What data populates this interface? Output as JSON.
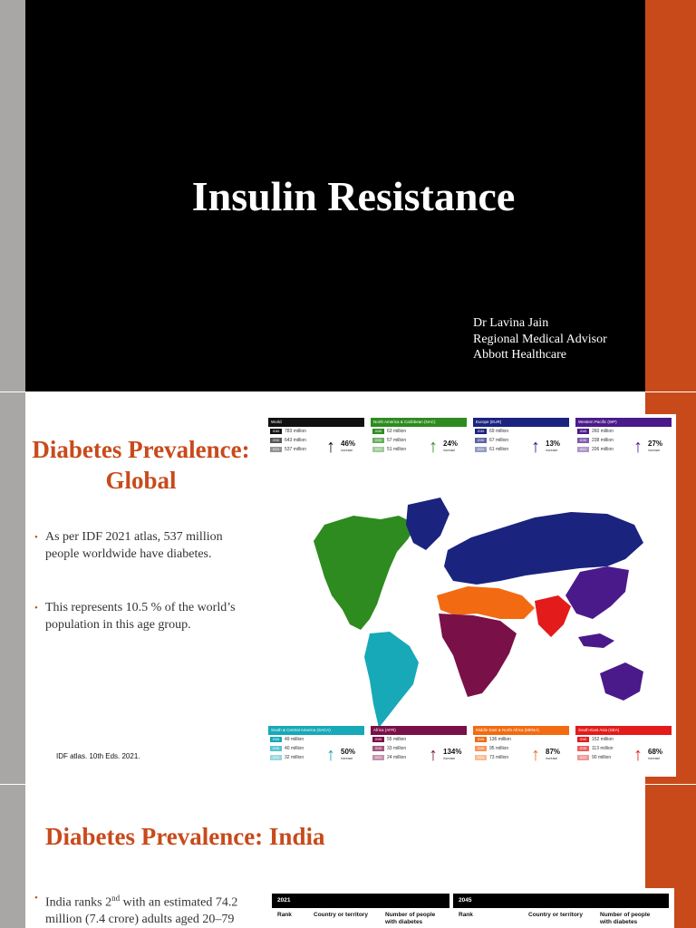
{
  "slide1": {
    "title": "Insulin Resistance",
    "presenter": [
      "Dr Lavina Jain",
      "Regional Medical Advisor",
      "Abbott Healthcare"
    ]
  },
  "slide2": {
    "title_line1": "Diabetes Prevalence:",
    "title_line2": "Global",
    "bullets": [
      "As per IDF 2021 atlas, 537 million people worldwide have diabetes.",
      "This represents 10.5 % of the world’s population in this age group."
    ],
    "source": "IDF atlas. 10th Eds. 2021.",
    "regions_top": [
      {
        "name": "World",
        "color": "#111111",
        "rows": [
          [
            "2045",
            "783 million"
          ],
          [
            "2030",
            "643 million"
          ],
          [
            "2021",
            "537 million"
          ]
        ],
        "increase": "46%",
        "increase_label": "increase"
      },
      {
        "name": "North America & Caribbean (NAC)",
        "color": "#2e8b1f",
        "rows": [
          [
            "2045",
            "63 million"
          ],
          [
            "2030",
            "57 million"
          ],
          [
            "2021",
            "51 million"
          ]
        ],
        "increase": "24%",
        "increase_label": "increase"
      },
      {
        "name": "Europe (EUR)",
        "color": "#1a237e",
        "rows": [
          [
            "2045",
            "69 million"
          ],
          [
            "2030",
            "67 million"
          ],
          [
            "2021",
            "61 million"
          ]
        ],
        "increase": "13%",
        "increase_label": "increase"
      },
      {
        "name": "Western Pacific (WP)",
        "color": "#4b1a8a",
        "rows": [
          [
            "2045",
            "260 million"
          ],
          [
            "2030",
            "238 million"
          ],
          [
            "2021",
            "206 million"
          ]
        ],
        "increase": "27%",
        "increase_label": "increase"
      }
    ],
    "regions_bottom": [
      {
        "name": "South & Central America (SACA)",
        "color": "#17a9b8",
        "rows": [
          [
            "2045",
            "49 million"
          ],
          [
            "2030",
            "40 million"
          ],
          [
            "2021",
            "32 million"
          ]
        ],
        "increase": "50%",
        "increase_label": "increase"
      },
      {
        "name": "Africa (AFR)",
        "color": "#7a1048",
        "rows": [
          [
            "2045",
            "55 million"
          ],
          [
            "2030",
            "33 million"
          ],
          [
            "2021",
            "24 million"
          ]
        ],
        "increase": "134%",
        "increase_label": "increase"
      },
      {
        "name": "Middle East & North Africa (MENA)",
        "color": "#f26b12",
        "rows": [
          [
            "2045",
            "136 million"
          ],
          [
            "2030",
            "95 million"
          ],
          [
            "2021",
            "73 million"
          ]
        ],
        "increase": "87%",
        "increase_label": "increase"
      },
      {
        "name": "South-East Asia (SEA)",
        "color": "#e31b1b",
        "rows": [
          [
            "2045",
            "152 million"
          ],
          [
            "2030",
            "113 million"
          ],
          [
            "2021",
            "90 million"
          ]
        ],
        "increase": "68%",
        "increase_label": "increase"
      }
    ]
  },
  "slide3": {
    "title": "Diabetes Prevalence: India",
    "bullet_pre": "India ranks 2",
    "bullet_sup": "nd",
    "bullet_post": " with an estimated 74.2 million (7.4 crore) adults aged 20–79",
    "table": {
      "year_a": "2021",
      "year_b": "2045",
      "col_rank": "Rank",
      "col_country": "Country or territory",
      "col_people": "Number of people with diabetes"
    }
  }
}
